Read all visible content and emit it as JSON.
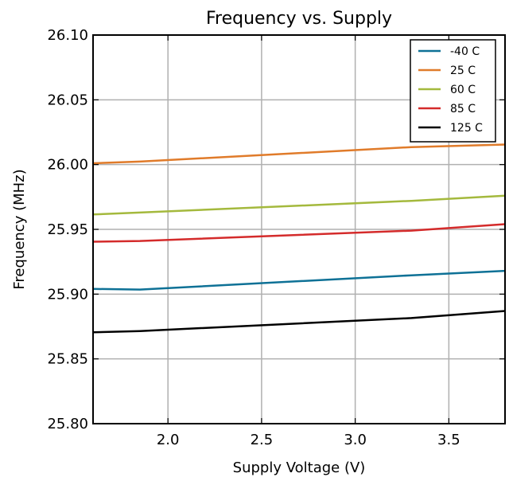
{
  "chart_data": {
    "type": "line",
    "title": "Frequency vs. Supply",
    "xlabel": "Supply Voltage (V)",
    "ylabel": "Frequency (MHz)",
    "xlim": [
      1.6,
      3.8
    ],
    "ylim": [
      25.8,
      26.1
    ],
    "xticks": [
      2.0,
      2.5,
      3.0,
      3.5
    ],
    "xtick_labels": [
      "2.0",
      "2.5",
      "3.0",
      "3.5"
    ],
    "yticks": [
      25.8,
      25.85,
      25.9,
      25.95,
      26.0,
      26.05,
      26.1
    ],
    "ytick_labels": [
      "25.80",
      "25.85",
      "25.90",
      "25.95",
      "26.00",
      "26.05",
      "26.10"
    ],
    "grid": true,
    "legend_position": "top-right",
    "series": [
      {
        "name": "-40 C",
        "color": "#0e7196",
        "x": [
          1.6,
          1.85,
          3.3,
          3.8
        ],
        "values": [
          25.904,
          25.9035,
          25.9145,
          25.918
        ]
      },
      {
        "name": "25 C",
        "color": "#e07b2a",
        "x": [
          1.6,
          1.85,
          3.3,
          3.8
        ],
        "values": [
          26.001,
          26.0023,
          26.0135,
          26.0155
        ]
      },
      {
        "name": "60 C",
        "color": "#a4b93d",
        "x": [
          1.6,
          1.85,
          3.3,
          3.8
        ],
        "values": [
          25.9615,
          25.963,
          25.972,
          25.976
        ]
      },
      {
        "name": "85 C",
        "color": "#d42b2b",
        "x": [
          1.6,
          1.85,
          3.3,
          3.8
        ],
        "values": [
          25.9405,
          25.941,
          25.949,
          25.954
        ]
      },
      {
        "name": "125 C",
        "color": "#000000",
        "x": [
          1.6,
          1.85,
          3.3,
          3.8
        ],
        "values": [
          25.8705,
          25.8715,
          25.8815,
          25.887
        ]
      }
    ]
  }
}
